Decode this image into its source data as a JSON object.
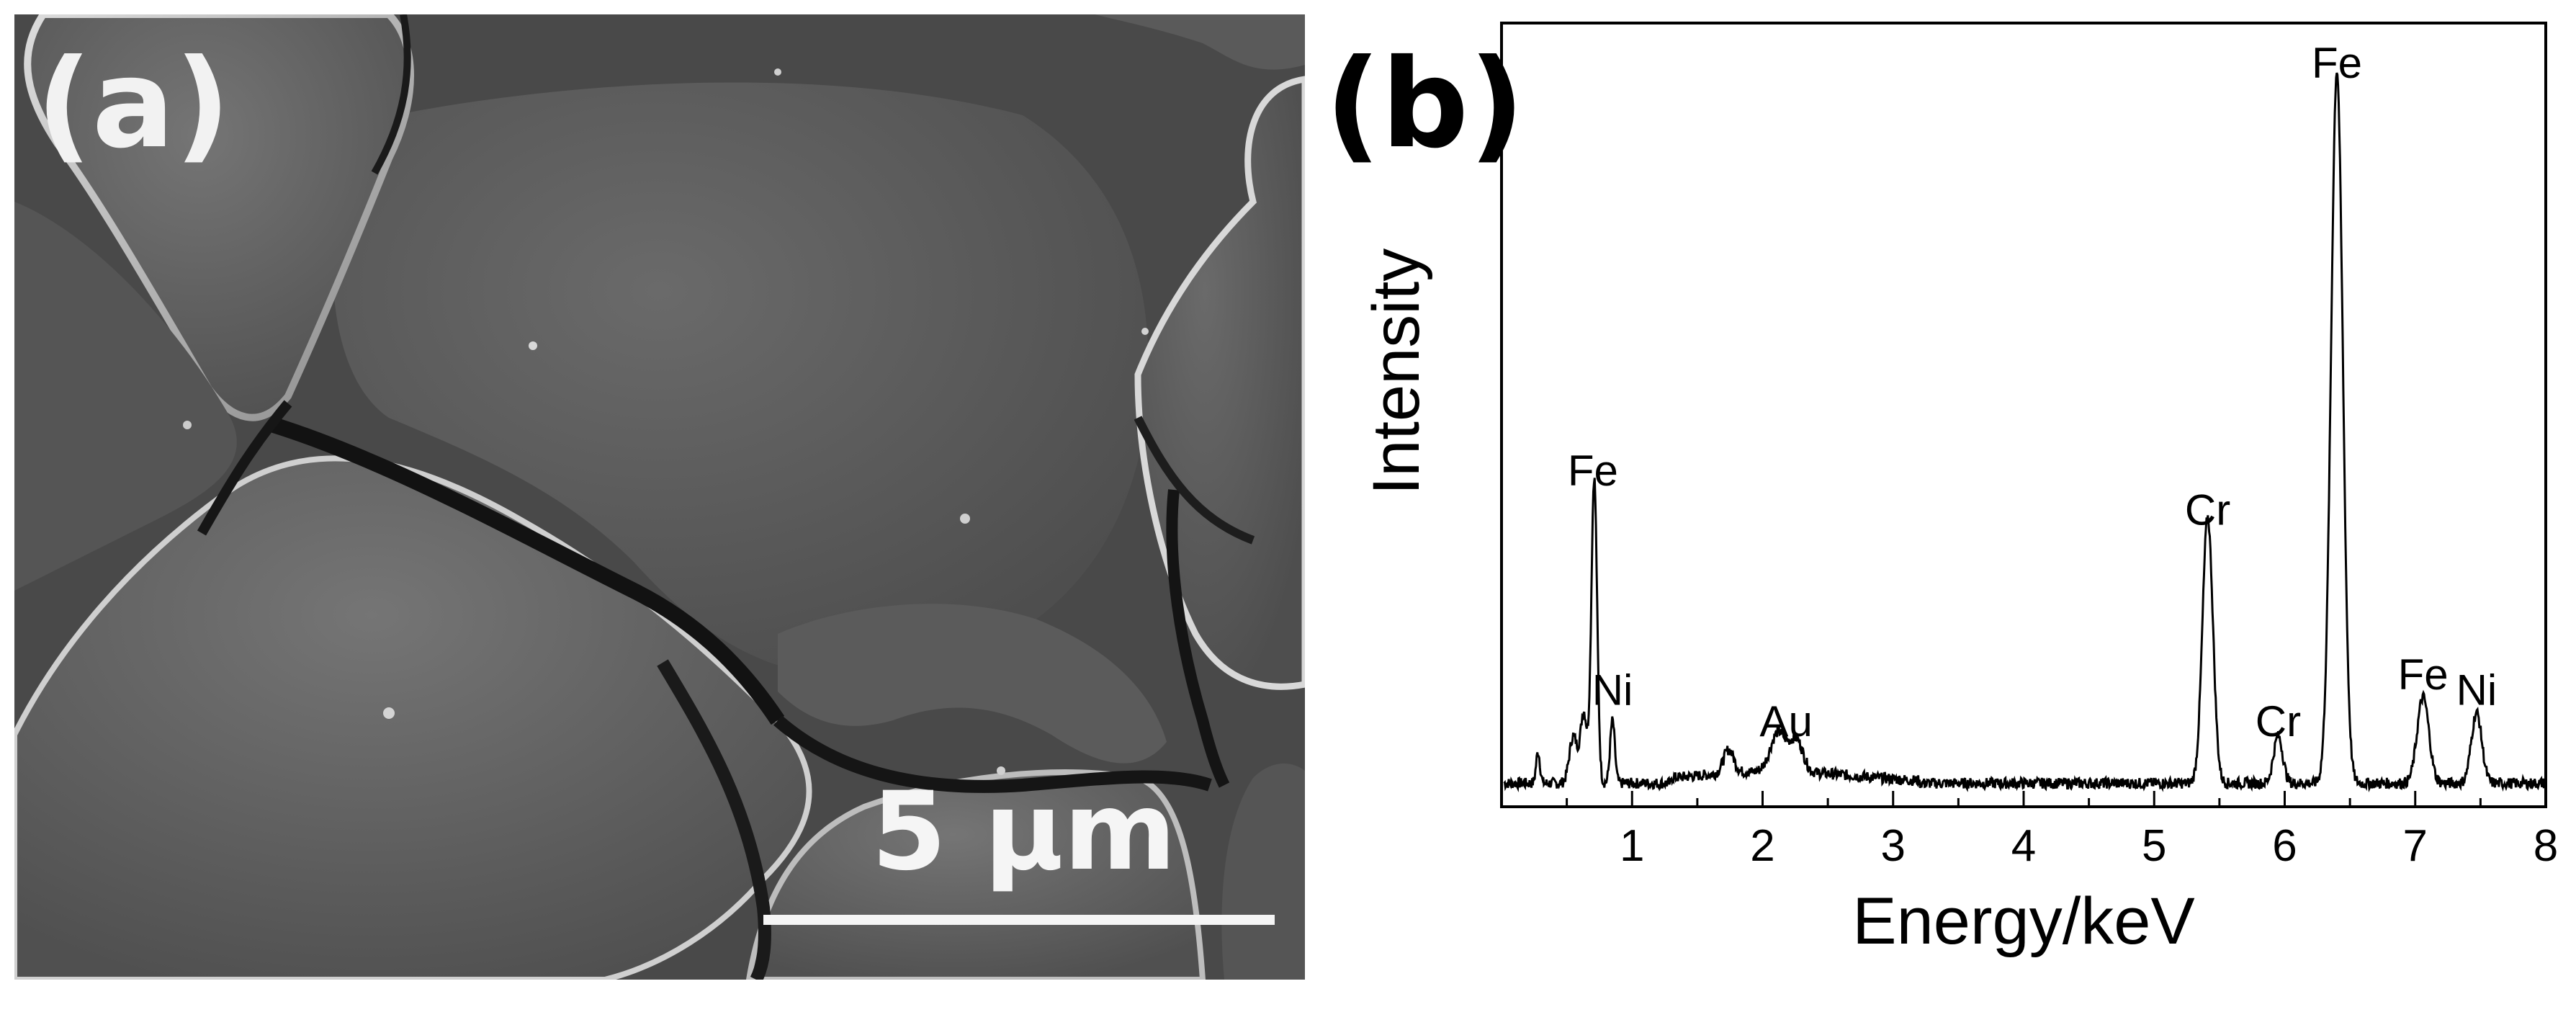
{
  "panel_a": {
    "label": "(a)",
    "scale_bar_text": "5 μm"
  },
  "panel_b": {
    "label": "(b)"
  },
  "chart_data": {
    "type": "line",
    "xlabel": "Energy/keV",
    "ylabel": "Intensity",
    "xlim": [
      0,
      8
    ],
    "ylim": [
      0,
      100
    ],
    "xticks": [
      "1",
      "2",
      "3",
      "4",
      "5",
      "6",
      "7",
      "8"
    ],
    "yticks": [],
    "grid": false,
    "background": 3,
    "peaks": [
      {
        "x": 0.28,
        "height": 4,
        "width": 0.015
      },
      {
        "x": 0.55,
        "height": 6,
        "width": 0.03
      },
      {
        "x": 0.63,
        "height": 9,
        "width": 0.025
      },
      {
        "x": 0.71,
        "height": 39,
        "width": 0.022
      },
      {
        "x": 0.85,
        "height": 8,
        "width": 0.018
      },
      {
        "x": 1.74,
        "height": 3,
        "width": 0.04
      },
      {
        "x": 2.12,
        "height": 5,
        "width": 0.06
      },
      {
        "x": 2.26,
        "height": 4,
        "width": 0.05
      },
      {
        "x": 5.41,
        "height": 34,
        "width": 0.04
      },
      {
        "x": 5.95,
        "height": 6,
        "width": 0.035
      },
      {
        "x": 6.4,
        "height": 91,
        "width": 0.045
      },
      {
        "x": 7.06,
        "height": 11,
        "width": 0.045
      },
      {
        "x": 7.47,
        "height": 9,
        "width": 0.04
      }
    ],
    "annotations": [
      {
        "text": "Fe",
        "x": 0.7,
        "y": 41
      },
      {
        "text": "Ni",
        "x": 0.85,
        "y": 13
      },
      {
        "text": "Au",
        "x": 2.18,
        "y": 9
      },
      {
        "text": "Cr",
        "x": 5.41,
        "y": 36
      },
      {
        "text": "Cr",
        "x": 5.95,
        "y": 9
      },
      {
        "text": "Fe",
        "x": 6.4,
        "y": 93
      },
      {
        "text": "Fe",
        "x": 7.06,
        "y": 15
      },
      {
        "text": "Ni",
        "x": 7.47,
        "y": 13
      }
    ]
  }
}
